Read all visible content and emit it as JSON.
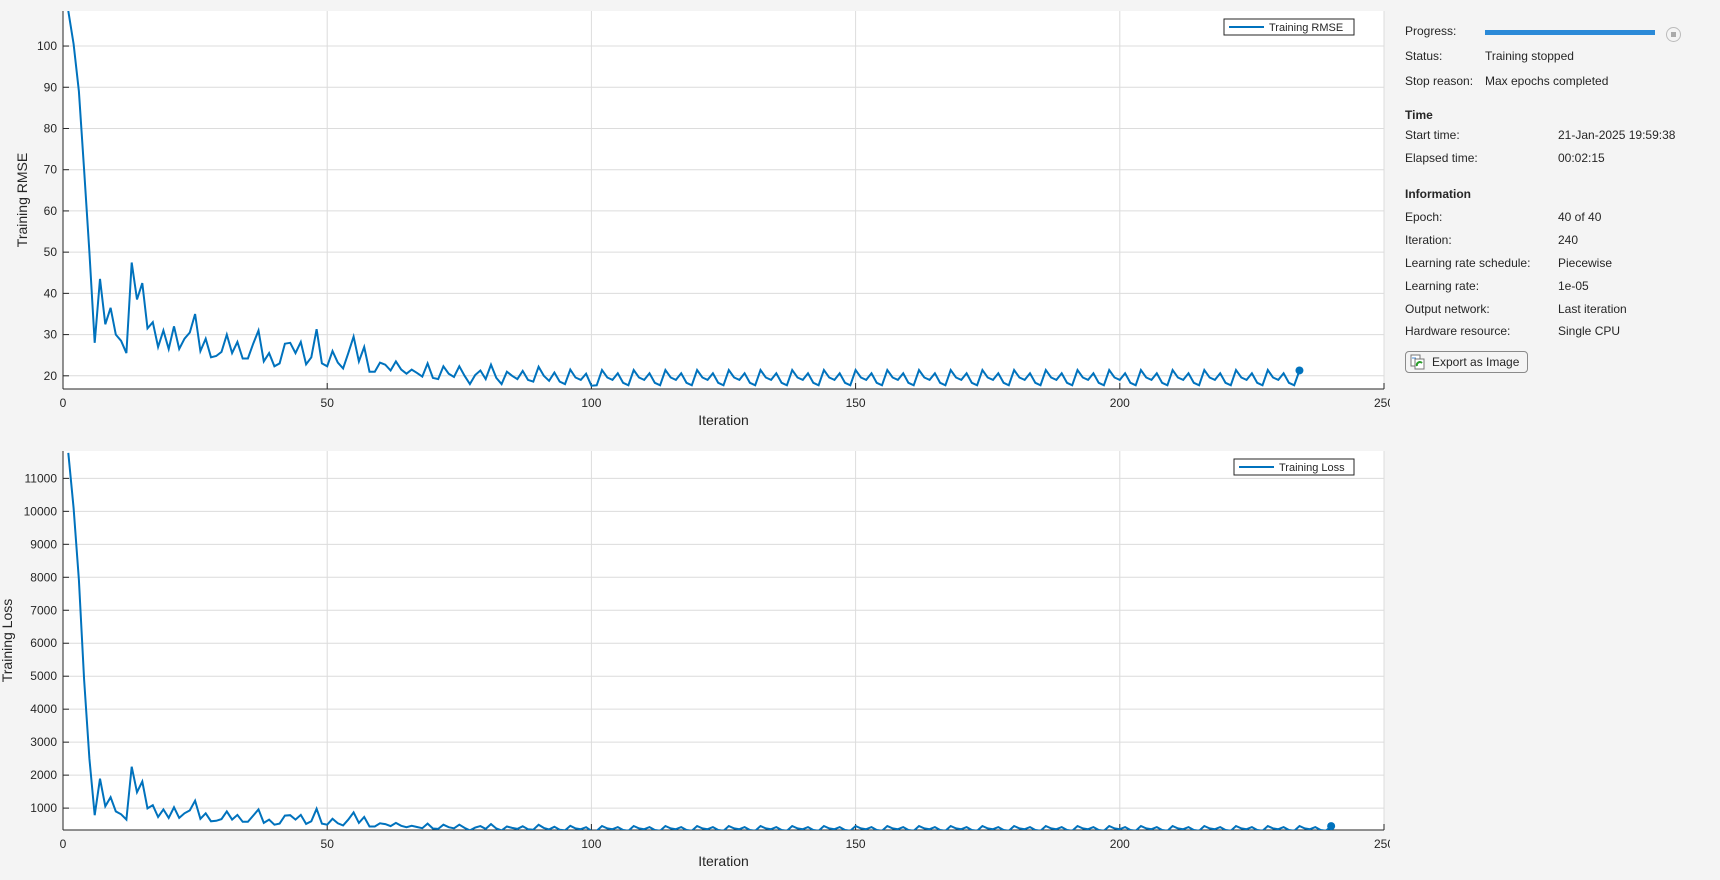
{
  "colors": {
    "line": "#0072bd",
    "progress": "#2b8ad8",
    "grid": "#dcdcdc"
  },
  "chart_data": [
    {
      "type": "line",
      "xlabel": "Iteration",
      "ylabel": "Training RMSE",
      "xlim": [
        0,
        250
      ],
      "ylim": [
        16.8,
        108.5
      ],
      "xticks": [
        "0",
        "50",
        "100",
        "150",
        "200",
        "250"
      ],
      "yticks": [
        "20",
        "30",
        "40",
        "50",
        "60",
        "70",
        "80",
        "90",
        "100"
      ],
      "grid": true,
      "legend": "top-right",
      "series": [
        {
          "name": "Training RMSE",
          "x_start": 1,
          "x_step": 1,
          "final_marker": true,
          "values": [
            108.5,
            100.5,
            89,
            70,
            50,
            28,
            43.5,
            32.5,
            36.5,
            30,
            28.5,
            25.5,
            47.5,
            38.5,
            42.5,
            31.5,
            33,
            27,
            31,
            26.5,
            32,
            26.5,
            29,
            30.5,
            35,
            26,
            29,
            24.5,
            24.8,
            25.8,
            30,
            25.5,
            28.2,
            24.2,
            24.2,
            27.8,
            31,
            23.5,
            25.5,
            22.3,
            23,
            27.8,
            28,
            25.5,
            28.2,
            22.8,
            24.5,
            31.3,
            23,
            22.3,
            26,
            23.2,
            21.8,
            25.5,
            29.5,
            23.5,
            27,
            21,
            21,
            23.2,
            22.7,
            21.3,
            23.5,
            21.5,
            20.5,
            21.5,
            20.7,
            19.8,
            23,
            19.5,
            19.2,
            22.3,
            20.5,
            19.7,
            22.3,
            20,
            18,
            20.2,
            21.3,
            19.2,
            22.7,
            19.5,
            18,
            21,
            20,
            19.2,
            21.2,
            19,
            18.6,
            22.2,
            20,
            18.8,
            20.8,
            18.6,
            18,
            21.5,
            19.6,
            19,
            20.5,
            17.6,
            17.7,
            21.4,
            19.6,
            19.0,
            20.6,
            18.3,
            17.7,
            21.4,
            19.6,
            19.0,
            20.6,
            18.3,
            17.7,
            21.4,
            19.6,
            19.0,
            20.6,
            18.3,
            17.7,
            21.4,
            19.6,
            19.0,
            20.6,
            18.3,
            17.7,
            21.4,
            19.6,
            19.0,
            20.6,
            18.3,
            17.7,
            21.4,
            19.6,
            19.0,
            20.6,
            18.3,
            17.7,
            21.4,
            19.6,
            19.0,
            20.6,
            18.3,
            17.7,
            21.4,
            19.6,
            19.0,
            20.6,
            18.3,
            17.7,
            21.4,
            19.6,
            19.0,
            20.6,
            18.3,
            17.7,
            21.4,
            19.6,
            19.0,
            20.6,
            18.3,
            17.7,
            21.4,
            19.6,
            19.0,
            20.6,
            18.3,
            17.7,
            21.4,
            19.6,
            19.0,
            20.6,
            18.3,
            17.7,
            21.4,
            19.6,
            19.0,
            20.6,
            18.3,
            17.7,
            21.4,
            19.6,
            19.0,
            20.6,
            18.3,
            17.7,
            21.4,
            19.6,
            19.0,
            20.6,
            18.3,
            17.7,
            21.4,
            19.6,
            19.0,
            20.6,
            18.3,
            17.7,
            21.4,
            19.6,
            19.0,
            20.6,
            18.3,
            17.7,
            21.4,
            19.6,
            19.0,
            20.6,
            18.3,
            17.7,
            21.4,
            19.6,
            19.0,
            20.6,
            18.3,
            17.7,
            21.4,
            19.6,
            19.0,
            20.6,
            18.3,
            17.7,
            21.4,
            19.6,
            19.0,
            20.6,
            18.3,
            17.7,
            21.4,
            19.6,
            19.0,
            20.6,
            18.3,
            17.7,
            21.3
          ]
        }
      ]
    },
    {
      "type": "line",
      "xlabel": "Iteration",
      "ylabel": "Training Loss",
      "xlim": [
        0,
        250
      ],
      "ylim": [
        336,
        11830
      ],
      "xticks": [
        "0",
        "50",
        "100",
        "150",
        "200",
        "250"
      ],
      "yticks": [
        "1000",
        "2000",
        "3000",
        "4000",
        "5000",
        "6000",
        "7000",
        "8000",
        "9000",
        "10000",
        "11000"
      ],
      "grid": true,
      "legend": "top-right",
      "series": [
        {
          "name": "Training Loss",
          "x_start": 1,
          "x_step": 1,
          "final_marker": true,
          "values": [
            11772,
            10100,
            7921,
            4900,
            2500,
            784,
            1892,
            1056,
            1332,
            900,
            812,
            650,
            2256,
            1482,
            1806,
            992,
            1089,
            729,
            961,
            702,
            1024,
            702,
            841,
            930,
            1225,
            676,
            841,
            600,
            615,
            666,
            900,
            650,
            795,
            586,
            586,
            773,
            961,
            552,
            650,
            497,
            529,
            773,
            784,
            650,
            795,
            520,
            600,
            980,
            529,
            497,
            676,
            538,
            475,
            650,
            870,
            552,
            729,
            441,
            441,
            538,
            515,
            454,
            552,
            462,
            420,
            462,
            428,
            392,
            529,
            380,
            369,
            497,
            420,
            388,
            497,
            400,
            324,
            408,
            454,
            369,
            515,
            380,
            324,
            441,
            400,
            369,
            449,
            361,
            346,
            493,
            400,
            353,
            433,
            346,
            324,
            462,
            384,
            361,
            420,
            310,
            313,
            458,
            384,
            361,
            424,
            335,
            313,
            458,
            384,
            361,
            424,
            335,
            313,
            458,
            384,
            361,
            424,
            335,
            313,
            458,
            384,
            361,
            424,
            335,
            313,
            458,
            384,
            361,
            424,
            335,
            313,
            458,
            384,
            361,
            424,
            335,
            313,
            458,
            384,
            361,
            424,
            335,
            313,
            458,
            384,
            361,
            424,
            335,
            313,
            458,
            384,
            361,
            424,
            335,
            313,
            458,
            384,
            361,
            424,
            335,
            313,
            458,
            384,
            361,
            424,
            335,
            313,
            458,
            384,
            361,
            424,
            335,
            313,
            458,
            384,
            361,
            424,
            335,
            313,
            458,
            384,
            361,
            424,
            335,
            313,
            458,
            384,
            361,
            424,
            335,
            313,
            458,
            384,
            361,
            424,
            335,
            313,
            458,
            384,
            361,
            424,
            335,
            313,
            458,
            384,
            361,
            424,
            335,
            313,
            458,
            384,
            361,
            424,
            335,
            313,
            458,
            384,
            361,
            424,
            335,
            313,
            458,
            384,
            361,
            424,
            335,
            313,
            458,
            384,
            361,
            424,
            335,
            313,
            458,
            384,
            361,
            424,
            335,
            313,
            454
          ]
        }
      ]
    }
  ],
  "panel": {
    "progress": {
      "label": "Progress:",
      "fraction": 1.0
    },
    "status": {
      "label": "Status:",
      "value": "Training stopped"
    },
    "stop_reason": {
      "label": "Stop reason:",
      "value": "Max epochs completed"
    },
    "time": {
      "heading": "Time",
      "start": {
        "label": "Start time:",
        "value": "21-Jan-2025 19:59:38"
      },
      "elapsed": {
        "label": "Elapsed time:",
        "value": "00:02:15"
      }
    },
    "info": {
      "heading": "Information",
      "rows": [
        {
          "label": "Epoch:",
          "value": "40 of 40"
        },
        {
          "label": "Iteration:",
          "value": "240"
        },
        {
          "label": "Learning rate schedule:",
          "value": "Piecewise"
        },
        {
          "label": "Learning rate:",
          "value": "1e-05"
        },
        {
          "label": "Output network:",
          "value": "Last iteration"
        },
        {
          "label": "Hardware resource:",
          "value": "Single CPU"
        }
      ]
    },
    "export_button": "Export as Image"
  }
}
